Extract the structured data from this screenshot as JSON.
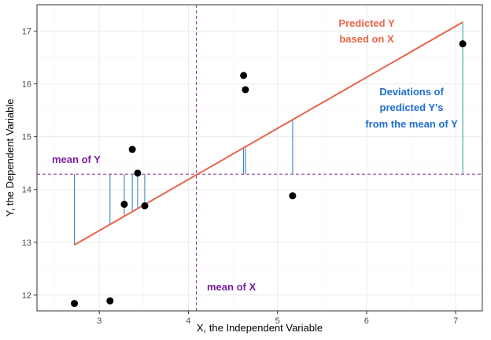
{
  "chart_data": {
    "type": "scatter",
    "xlabel": "X, the Independent Variable",
    "ylabel": "Y, the Dependent Variable",
    "xlim": [
      2.3,
      7.3
    ],
    "ylim": [
      11.7,
      17.5
    ],
    "x_ticks": [
      3,
      4,
      5,
      6,
      7
    ],
    "y_ticks": [
      12,
      13,
      14,
      15,
      16,
      17
    ],
    "grid": true,
    "points": [
      {
        "x": 2.72,
        "y": 11.84
      },
      {
        "x": 3.12,
        "y": 11.89
      },
      {
        "x": 3.28,
        "y": 13.72
      },
      {
        "x": 3.37,
        "y": 14.76
      },
      {
        "x": 3.43,
        "y": 14.31
      },
      {
        "x": 3.51,
        "y": 13.69
      },
      {
        "x": 4.62,
        "y": 16.16
      },
      {
        "x": 4.64,
        "y": 15.89
      },
      {
        "x": 5.17,
        "y": 13.88
      },
      {
        "x": 7.08,
        "y": 16.76
      }
    ],
    "regression_line": {
      "x": [
        2.72,
        7.08
      ],
      "y": [
        12.95,
        17.17
      ]
    },
    "mean_x": 4.09,
    "mean_y": 14.29,
    "deviation_x": [
      2.72,
      3.12,
      3.28,
      3.37,
      3.43,
      3.51,
      4.62,
      4.64,
      5.17,
      7.08
    ],
    "colors": {
      "points": "#000000",
      "regression": "#e8654a",
      "deviation_segments": "#2b7bbd",
      "last_segment": "#2aa198",
      "mean_lines": "#7b2c8e",
      "mean_labels": "#7b1fa2",
      "deviations_label": "#1f6fcf",
      "grid_major": "#ebebeb",
      "grid_minor": "#f5f5f5",
      "panel_border": "#333333"
    },
    "annotations": {
      "predicted_line1": "Predicted Y",
      "predicted_line2": "based on X",
      "deviations_line1": "Deviations of",
      "deviations_line2": "predicted Y's",
      "deviations_line3": "from the mean of Y",
      "mean_y_label": "mean of Y",
      "mean_x_label": "mean of X"
    }
  }
}
